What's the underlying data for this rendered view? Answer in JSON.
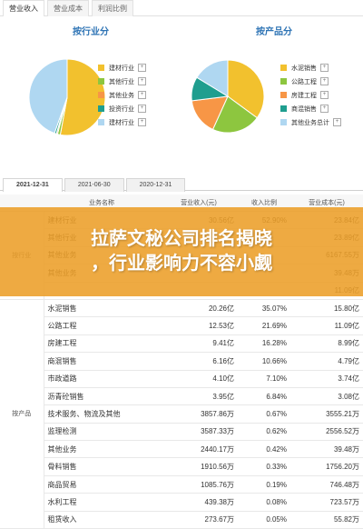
{
  "top_tabs": [
    "营业收入",
    "营业成本",
    "利润比例"
  ],
  "left_panel": {
    "title": "按行业分",
    "legend": [
      "建材行业",
      "其他行业",
      "其他业务",
      "投资行业",
      "建材行业"
    ]
  },
  "right_panel": {
    "title": "按产品分",
    "legend": [
      "水泥销售",
      "公路工程",
      "房建工程",
      "商混销售",
      "其他业务总计"
    ]
  },
  "date_tabs": [
    "2021-12-31",
    "2021-06-30",
    "2020-12-31"
  ],
  "table": {
    "headers": [
      "业务名称",
      "营业收入(元)",
      "收入比例",
      "营业成本(元)"
    ],
    "group_industry": "按行业",
    "group_product": "按产品",
    "rows": [
      [
        "建材行业",
        "30.56亿",
        "52.90%",
        "23.84亿"
      ],
      [
        "其他行业",
        "",
        "",
        "23.89亿"
      ],
      [
        "其他业务",
        "",
        "",
        "6167.55万"
      ],
      [
        "其他业务",
        "",
        "",
        "39.48万"
      ],
      [
        "",
        "",
        "",
        "11.09亿"
      ],
      [
        "水泥销售",
        "20.26亿",
        "35.07%",
        "15.80亿"
      ],
      [
        "公路工程",
        "12.53亿",
        "21.69%",
        "11.09亿"
      ],
      [
        "房建工程",
        "9.41亿",
        "16.28%",
        "8.99亿"
      ],
      [
        "商混销售",
        "6.16亿",
        "10.66%",
        "4.79亿"
      ],
      [
        "市政道路",
        "4.10亿",
        "7.10%",
        "3.74亿"
      ],
      [
        "沥青砼销售",
        "3.95亿",
        "6.84%",
        "3.08亿"
      ],
      [
        "技术服务、物流及其他",
        "3857.86万",
        "0.67%",
        "3555.21万"
      ],
      [
        "监理检测",
        "3587.33万",
        "0.62%",
        "2556.52万"
      ],
      [
        "其他业务",
        "2440.17万",
        "0.42%",
        "39.48万"
      ],
      [
        "骨料销售",
        "1910.56万",
        "0.33%",
        "1756.20万"
      ],
      [
        "商品贸易",
        "1085.76万",
        "0.19%",
        "746.48万"
      ],
      [
        "水利工程",
        "439.38万",
        "0.08%",
        "723.57万"
      ],
      [
        "租赁收入",
        "273.67万",
        "0.05%",
        "55.82万"
      ]
    ]
  },
  "banner": {
    "line1": "拉萨文秘公司排名揭晓",
    "line2": "，行业影响力不容小觑"
  },
  "colors": {
    "yellow": "#F2C12E",
    "green": "#8DC63F",
    "orange": "#F79646",
    "teal": "#1F9E8F",
    "lightblue": "#AFD7F1",
    "accent_title": "#2E74B5",
    "banner": "#EC9E28"
  },
  "pie_left": [
    52.9,
    1.2,
    0.5,
    0.8,
    44.6
  ],
  "pie_right": [
    35.07,
    21.69,
    16.28,
    10.66,
    16.3
  ]
}
